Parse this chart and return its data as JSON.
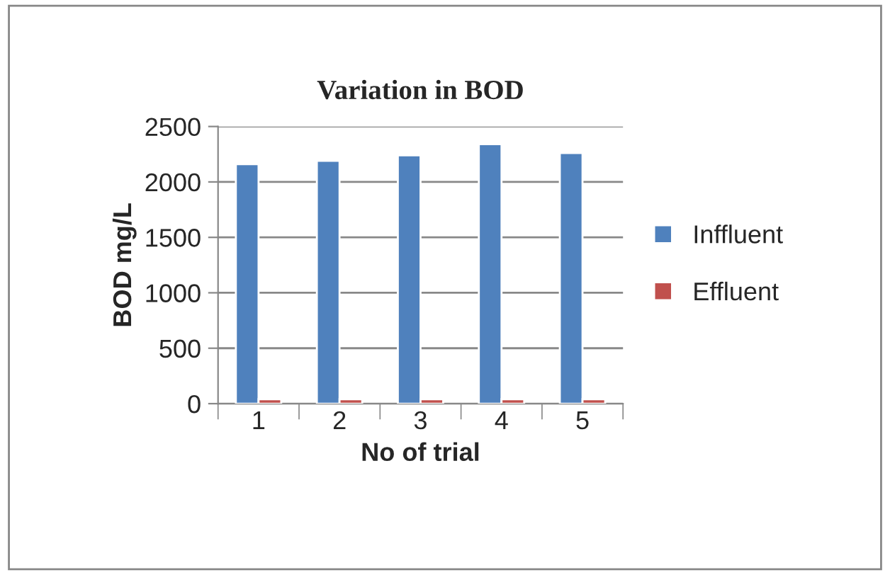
{
  "chart_data": {
    "type": "bar",
    "title": "Variation in BOD",
    "xlabel": "No of trial",
    "ylabel": "BOD mg/L",
    "categories": [
      "1",
      "2",
      "3",
      "4",
      "5"
    ],
    "series": [
      {
        "name": "Inffluent",
        "color": "#4f81bd",
        "values": [
          2160,
          2190,
          2240,
          2340,
          2260
        ]
      },
      {
        "name": "Effluent",
        "color": "#c0504d",
        "values": [
          40,
          40,
          40,
          40,
          40
        ]
      }
    ],
    "ylim": [
      0,
      2500
    ],
    "yticks": [
      0,
      500,
      1000,
      1500,
      2000,
      2500
    ],
    "grid": "y",
    "legend": "right"
  }
}
